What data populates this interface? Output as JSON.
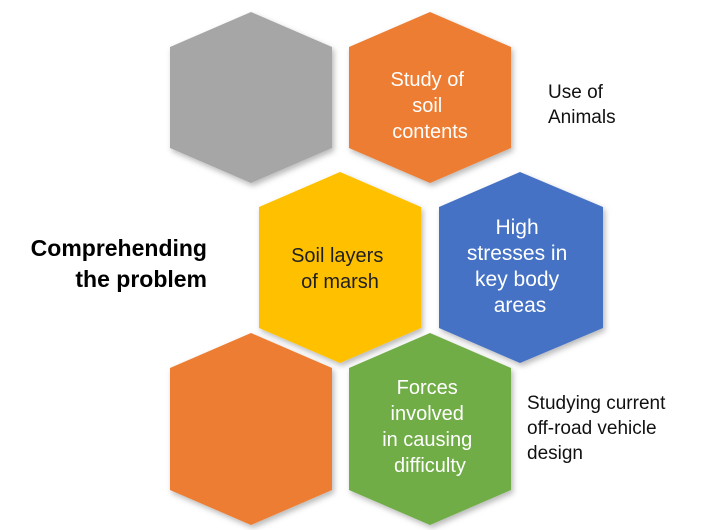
{
  "title": {
    "lines": [
      "Comprehending",
      "the problem"
    ]
  },
  "hexagons": [
    {
      "id": "hex-gray",
      "color": "#a6a6a6",
      "text_color": "#ffffff",
      "lines": []
    },
    {
      "id": "hex-study-soil",
      "color": "#ed7d31",
      "text_color": "#ffffff",
      "lines": [
        "Study of",
        "soil",
        "contents"
      ]
    },
    {
      "id": "hex-soil-layers",
      "color": "#ffc000",
      "text_color": "#1f1f1f",
      "lines": [
        "Soil layers",
        "of marsh"
      ]
    },
    {
      "id": "hex-high-stresses",
      "color": "#4472c4",
      "text_color": "#ffffff",
      "lines": [
        "High",
        "stresses in",
        "key  body",
        "areas"
      ]
    },
    {
      "id": "hex-orange-blank",
      "color": "#ed7d31",
      "text_color": "#ffffff",
      "lines": []
    },
    {
      "id": "hex-forces",
      "color": "#70ad47",
      "text_color": "#ffffff",
      "lines": [
        "Forces",
        "involved",
        "in causing",
        "difficulty"
      ]
    }
  ],
  "side_labels": {
    "use_of_animals": [
      "Use of",
      "Animals"
    ],
    "studying_current": [
      "Studying current",
      "off-road vehicle",
      "design"
    ]
  }
}
